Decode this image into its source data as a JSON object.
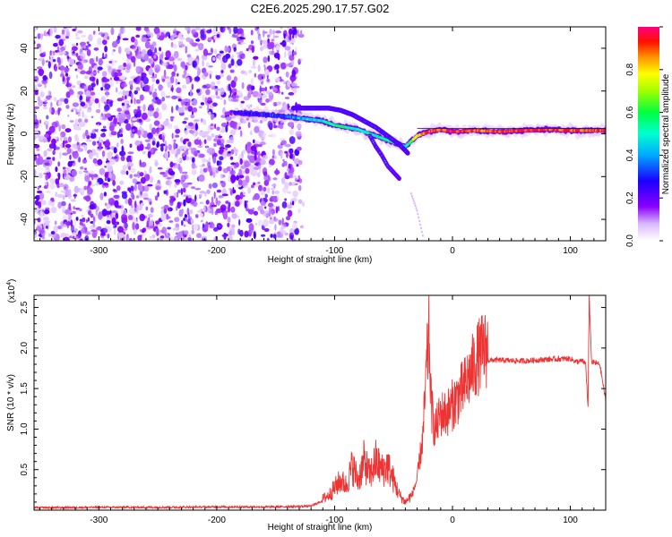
{
  "figure": {
    "title": "C2E6.2025.290.17.57.G02"
  },
  "chart_data": [
    {
      "type": "heatmap",
      "title": "C2E6.2025.290.17.57.G02",
      "xlabel": "Height of straight line (km)",
      "ylabel": "Frequency (Hz)",
      "xlim": [
        -355,
        130
      ],
      "ylim": [
        -50,
        50
      ],
      "xticks": [
        -300,
        -200,
        -100,
        0,
        100
      ],
      "yticks": [
        -40,
        -20,
        0,
        20,
        40
      ],
      "xtick_labels": [
        "-300",
        "-200",
        "-100",
        "0",
        "100"
      ],
      "ytick_labels": [
        "-40",
        "-20",
        "0",
        "20",
        "40"
      ],
      "colorbar": {
        "label": "Normalized spectral amplitude",
        "range": [
          0,
          1
        ],
        "ticks": [
          0.0,
          0.2,
          0.4,
          0.6,
          0.8
        ],
        "tick_labels": [
          "0.0",
          "0.2",
          "0.4",
          "0.6",
          "0.8"
        ],
        "colors": [
          "#ffffff",
          "#c080ff",
          "#7f00ff",
          "#0000ff",
          "#00c0ff",
          "#00ff80",
          "#80ff00",
          "#ffff00",
          "#ff8000",
          "#ff0000",
          "#ff0080"
        ]
      },
      "noise_region": {
        "x": [
          -355,
          -130
        ],
        "y": [
          -50,
          50
        ],
        "level": 0.2
      },
      "main_trace": {
        "x": [
          -185,
          -160,
          -140,
          -125,
          -110,
          -100,
          -90,
          -80,
          -70,
          -60,
          -50,
          -40,
          -30,
          -20,
          -10,
          0,
          20,
          40,
          60,
          80,
          100,
          115,
          130
        ],
        "freq": [
          10,
          9,
          8,
          7,
          6,
          4,
          3,
          2,
          0,
          -2,
          -4,
          -6,
          -1,
          1,
          2,
          1,
          1.5,
          1,
          1.5,
          2,
          1.5,
          1.5,
          1.5
        ],
        "amp": [
          0.25,
          0.3,
          0.35,
          0.45,
          0.5,
          0.55,
          0.55,
          0.5,
          0.55,
          0.5,
          0.6,
          0.5,
          0.8,
          0.9,
          0.9,
          0.95,
          0.9,
          0.9,
          0.95,
          0.9,
          0.9,
          0.9,
          0.9
        ]
      },
      "upper_trace": {
        "x": [
          -135,
          -120,
          -105,
          -95,
          -85,
          -75,
          -65,
          -55,
          -45,
          -38
        ],
        "freq": [
          12,
          12,
          12,
          11,
          9,
          6,
          3,
          -1,
          -5,
          -9
        ]
      },
      "lower_branch": {
        "x": [
          -70,
          -65,
          -60,
          -55,
          -50,
          -45
        ],
        "freq": [
          -1,
          -6,
          -10,
          -15,
          -18,
          -21
        ]
      },
      "faint_tail": {
        "x": [
          -35,
          -30,
          -25
        ],
        "freq": [
          -28,
          -36,
          -48
        ]
      }
    },
    {
      "type": "line",
      "xlabel": "Height of straight line (km)",
      "ylabel": "SNR (10 * v/v)",
      "multiplier": "(x10",
      "multiplier_exponent": "4",
      "xlim": [
        -355,
        130
      ],
      "ylim": [
        0,
        26500
      ],
      "xticks": [
        -300,
        -200,
        -100,
        0,
        100
      ],
      "xtick_labels": [
        "-300",
        "-200",
        "-100",
        "0",
        "100"
      ],
      "yticks": [
        5000,
        10000,
        15000,
        20000,
        25000
      ],
      "ytick_labels": [
        "0.5",
        "1.0",
        "1.5",
        "2.0",
        "2.5"
      ],
      "series": [
        {
          "name": "SNR",
          "color": "#ee3333",
          "x": [
            -355,
            -300,
            -250,
            -200,
            -150,
            -120,
            -105,
            -95,
            -90,
            -85,
            -80,
            -75,
            -70,
            -65,
            -60,
            -55,
            -50,
            -45,
            -40,
            -35,
            -30,
            -25,
            -22,
            -20,
            -18,
            -15,
            -10,
            -5,
            0,
            5,
            10,
            15,
            20,
            25,
            30,
            40,
            60,
            80,
            100,
            105,
            110,
            113,
            115,
            116,
            118,
            120,
            125,
            130
          ],
          "y": [
            300,
            350,
            350,
            400,
            400,
            500,
            1500,
            3000,
            2500,
            4500,
            3000,
            5000,
            3500,
            5000,
            4000,
            4500,
            3000,
            1500,
            800,
            1500,
            3500,
            8500,
            16000,
            20000,
            12000,
            9000,
            11000,
            11000,
            12000,
            13000,
            14000,
            15500,
            17000,
            18000,
            18500,
            18500,
            18400,
            18600,
            18700,
            18300,
            18400,
            18100,
            12500,
            26500,
            18300,
            18200,
            18000,
            13500
          ]
        }
      ]
    }
  ]
}
